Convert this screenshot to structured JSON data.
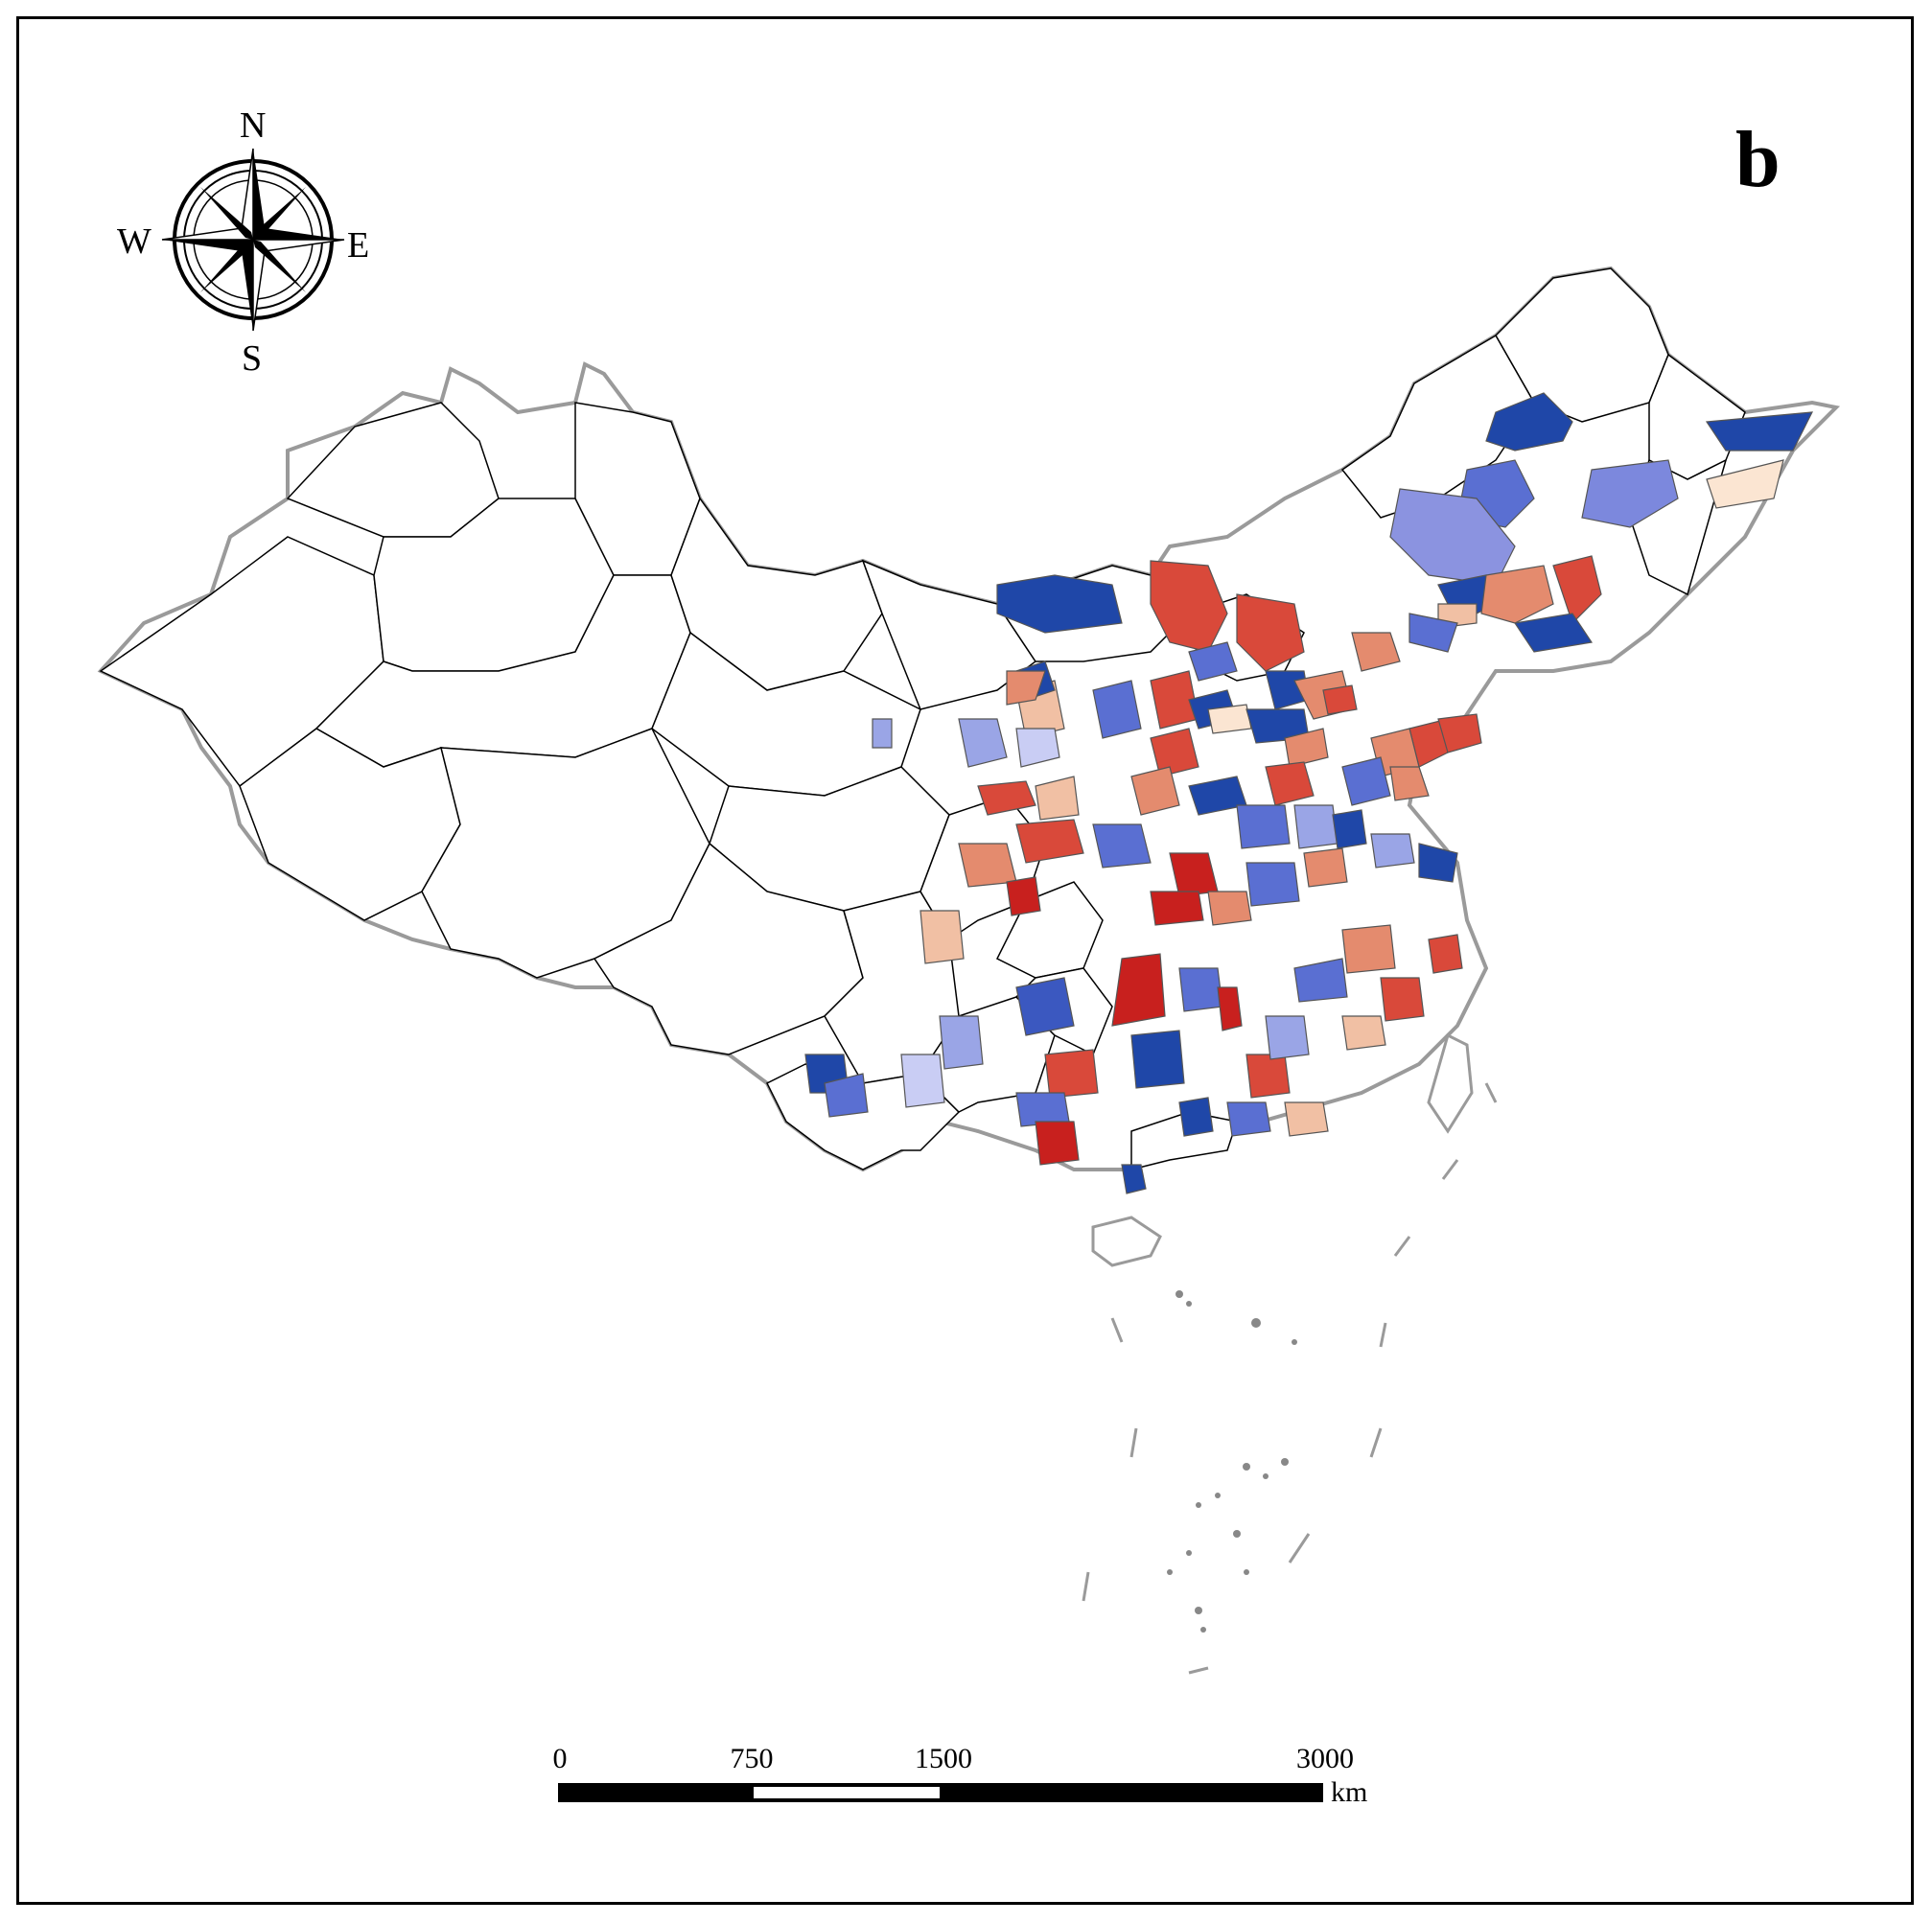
{
  "panel_label": "b",
  "compass": {
    "north": "N",
    "south": "S",
    "east": "E",
    "west": "W",
    "icon": "compass-rose-icon"
  },
  "scale_bar": {
    "ticks": [
      "0",
      "750",
      "1500",
      "3000"
    ],
    "unit": "km"
  },
  "colors": {
    "dark_red": "#c8201e",
    "red": "#d9493a",
    "salmon": "#e48b6e",
    "light_salmon": "#f1c0a4",
    "cream": "#fbe5d2",
    "pale_blue": "#c9cdf4",
    "light_blue": "#9aa5e6",
    "blue": "#5a6fd2",
    "dark_blue": "#1f47a8",
    "border_gray": "#9a9a9a",
    "outline": "#000000"
  }
}
